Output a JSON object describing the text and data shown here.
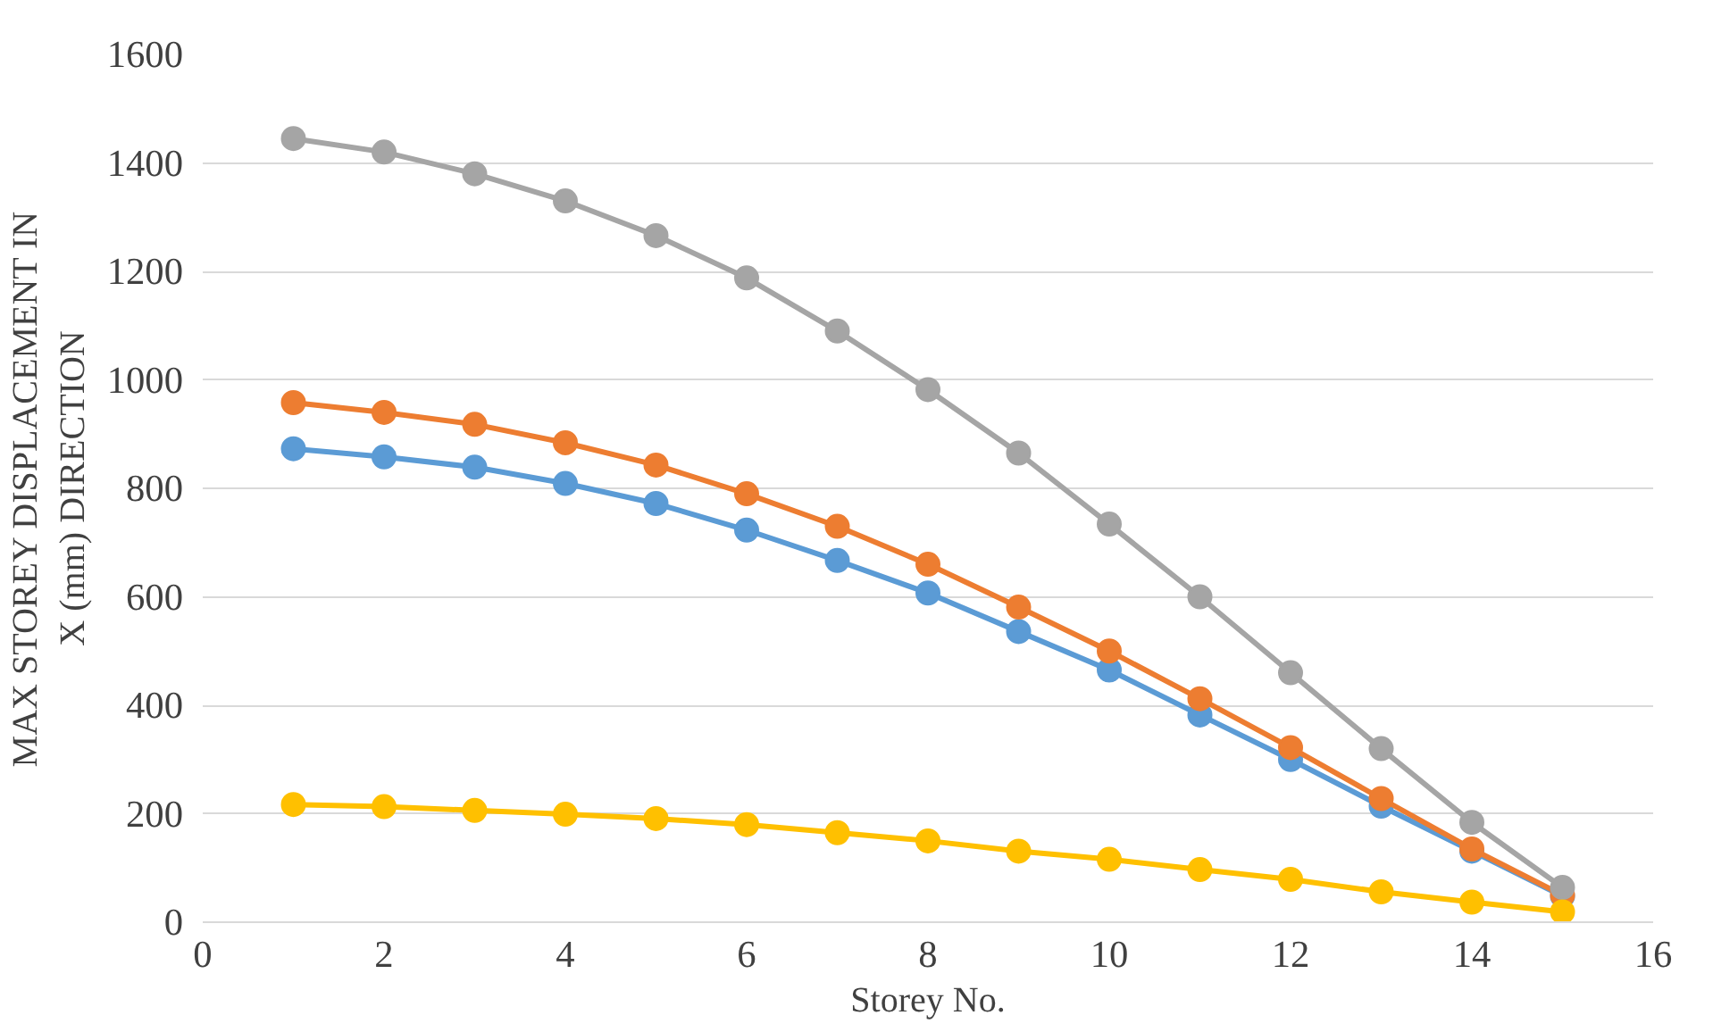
{
  "chart_data": {
    "type": "line",
    "xlabel": "Storey No.",
    "ylabel": "MAX STOREY DISPLACEMENT IN\nX (mm) DIRECTION",
    "x": [
      1,
      2,
      3,
      4,
      5,
      6,
      7,
      8,
      9,
      10,
      11,
      12,
      13,
      14,
      15
    ],
    "series": [
      {
        "color": "#5b9bd5",
        "values": [
          873,
          858,
          839,
          809,
          772,
          723,
          667,
          607,
          536,
          465,
          382,
          300,
          214,
          131,
          48
        ]
      },
      {
        "color": "#ed7d31",
        "values": [
          958,
          940,
          918,
          884,
          843,
          790,
          730,
          660,
          581,
          500,
          412,
          322,
          228,
          135,
          50
        ]
      },
      {
        "color": "#a5a5a5",
        "values": [
          1445,
          1420,
          1380,
          1330,
          1266,
          1188,
          1090,
          982,
          865,
          734,
          600,
          460,
          320,
          184,
          64
        ]
      },
      {
        "color": "#ffc000",
        "values": [
          217,
          213,
          206,
          199,
          191,
          180,
          165,
          150,
          131,
          116,
          97,
          79,
          56,
          37,
          19
        ]
      }
    ],
    "xlim": [
      0,
      16
    ],
    "xticks": [
      0,
      2,
      4,
      6,
      8,
      10,
      12,
      14,
      16
    ],
    "ylim": [
      0,
      1600
    ],
    "yticks": [
      0,
      200,
      400,
      600,
      800,
      1000,
      1200,
      1400,
      1600
    ],
    "grid": "y",
    "marker": "circle",
    "line_style": "solid"
  }
}
